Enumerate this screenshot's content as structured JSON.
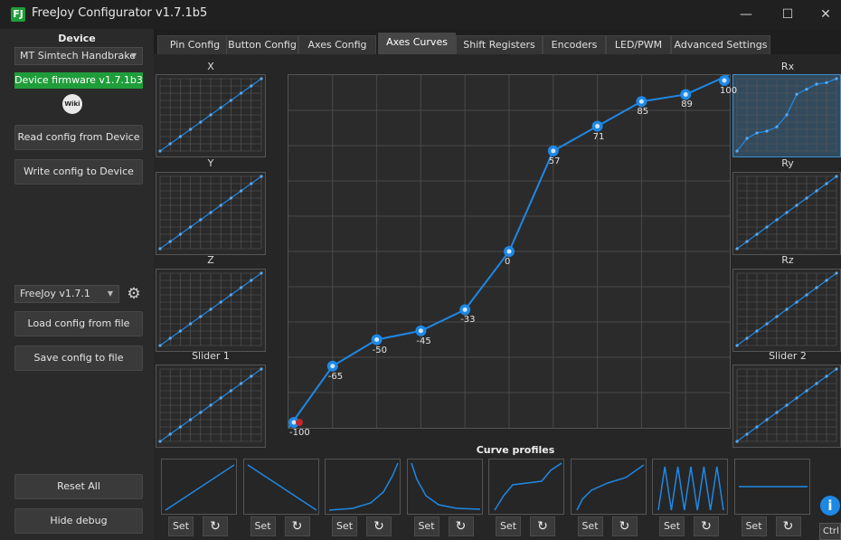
{
  "window": {
    "title": "FreeJoy Configurator v1.7.1b5",
    "minimize": "—",
    "maximize": "☐",
    "close": "✕",
    "app_icon": "FJ"
  },
  "sidebar": {
    "device_label": "Device",
    "device_selected": "MT Simtech Handbrake",
    "firmware_status": "Device firmware v1.7.1b3",
    "wiki_label": "Wiki",
    "read_config": "Read config from Device",
    "write_config": "Write config to Device",
    "version_selected": "FreeJoy v1.7.1",
    "load_config": "Load config from file",
    "save_config": "Save config to file",
    "reset_all": "Reset All",
    "hide_debug": "Hide debug",
    "firmware_color": "#1f9d3a"
  },
  "tabs": [
    {
      "label": "Pin Config"
    },
    {
      "label": "Button Config"
    },
    {
      "label": "Axes Config"
    },
    {
      "label": "Axes Curves"
    },
    {
      "label": "Shift Registers"
    },
    {
      "label": "Encoders"
    },
    {
      "label": "LED/PWM"
    },
    {
      "label": "Advanced Settings"
    }
  ],
  "active_tab": "Axes Curves",
  "axes_left": [
    {
      "label": "X"
    },
    {
      "label": "Y"
    },
    {
      "label": "Z"
    },
    {
      "label": "Slider 1"
    }
  ],
  "axes_right": [
    {
      "label": "Rx"
    },
    {
      "label": "Ry"
    },
    {
      "label": "Rz"
    },
    {
      "label": "Slider 2"
    }
  ],
  "curve_points": [
    {
      "label": "-100",
      "value": -100
    },
    {
      "label": "-65",
      "value": -65
    },
    {
      "label": "-50",
      "value": -50
    },
    {
      "label": "-45",
      "value": -45
    },
    {
      "label": "-33",
      "value": -33
    },
    {
      "label": "0",
      "value": 0
    },
    {
      "label": "57",
      "value": 57
    },
    {
      "label": "71",
      "value": 71
    },
    {
      "label": "85",
      "value": 85
    },
    {
      "label": "89",
      "value": 89
    },
    {
      "label": "100",
      "value": 100
    }
  ],
  "curve_profiles_title": "Curve profiles",
  "profiles": [
    {
      "name": "linear",
      "set": "Set"
    },
    {
      "name": "inverted",
      "set": "Set"
    },
    {
      "name": "exponent",
      "set": "Set"
    },
    {
      "name": "decay",
      "set": "Set"
    },
    {
      "name": "s-curve",
      "set": "Set"
    },
    {
      "name": "ease",
      "set": "Set"
    },
    {
      "name": "zigzag",
      "set": "Set"
    },
    {
      "name": "flat",
      "set": "Set"
    }
  ],
  "reset_icon": "↻",
  "info_icon": "i",
  "corner_text": "Ctrl",
  "accent": "#1e88e5"
}
